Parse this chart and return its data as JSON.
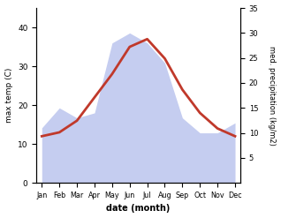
{
  "months": [
    "Jan",
    "Feb",
    "Mar",
    "Apr",
    "May",
    "Jun",
    "Jul",
    "Aug",
    "Sep",
    "Oct",
    "Nov",
    "Dec"
  ],
  "temperature": [
    12,
    13,
    16,
    22,
    28,
    35,
    37,
    32,
    24,
    18,
    14,
    12
  ],
  "precipitation": [
    11,
    15,
    13,
    14,
    28,
    30,
    28,
    24,
    13,
    10,
    10,
    12
  ],
  "temp_color": "#c0392b",
  "precip_fill_color": "#c5cdf0",
  "temp_ylim": [
    0,
    45
  ],
  "precip_ylim": [
    0,
    35
  ],
  "temp_yticks": [
    0,
    10,
    20,
    30,
    40
  ],
  "precip_yticks": [
    5,
    10,
    15,
    20,
    25,
    30,
    35
  ],
  "xlabel": "date (month)",
  "ylabel_left": "max temp (C)",
  "ylabel_right": "med. precipitation (kg/m2)"
}
